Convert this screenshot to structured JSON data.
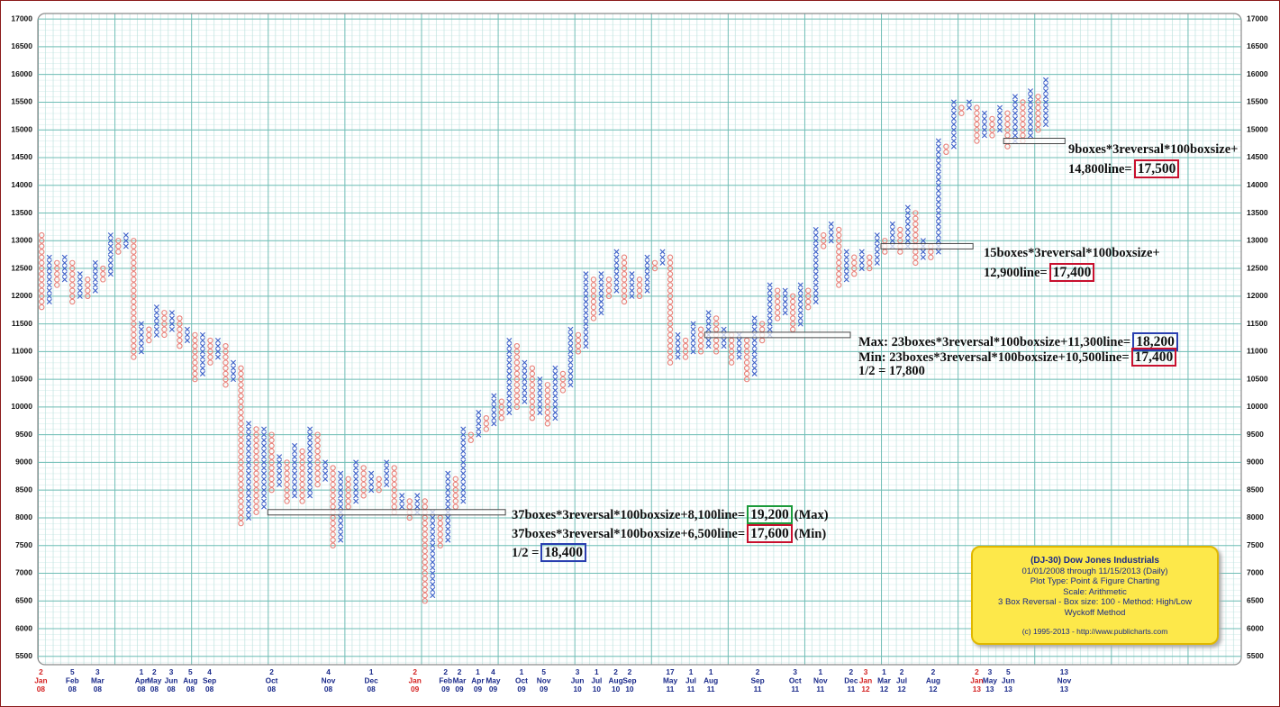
{
  "chart_data": {
    "type": "pointfigure",
    "box_size": 100,
    "xlim": [
      0,
      157
    ],
    "ylim": [
      5350,
      17100
    ],
    "yticks": [
      5500,
      6000,
      6500,
      7000,
      7500,
      8000,
      8500,
      9000,
      9500,
      10000,
      10500,
      11000,
      11500,
      12000,
      12500,
      13000,
      13500,
      14000,
      14500,
      15000,
      15500,
      16000,
      16500,
      17000
    ],
    "colors": {
      "X": "#3b5fc8",
      "O": "#e8827a",
      "grid_minor": "#bfe3df",
      "grid_major": "#6fbdb5",
      "label": "#1a2a8a",
      "label_highlight": "#d42020"
    },
    "turning_points": [
      13100,
      11800,
      12700,
      12200,
      12700,
      11900,
      12400,
      12000,
      12600,
      12300,
      13100,
      12800,
      13100,
      10900,
      11500,
      11200,
      11800,
      11300,
      11700,
      11100,
      11400,
      10500,
      11300,
      10800,
      11200,
      10400,
      10800,
      7900,
      9700,
      8100,
      9600,
      8500,
      9100,
      8300,
      9300,
      8300,
      9600,
      8600,
      9000,
      7500,
      8800,
      8200,
      9000,
      8400,
      8800,
      8500,
      9000,
      8100,
      8400,
      8000,
      8400,
      6500,
      8100,
      7500,
      8800,
      8200,
      9600,
      9400,
      9900,
      9600,
      10200,
      9800,
      11200,
      10000,
      10800,
      9800,
      10500,
      9700,
      10700,
      10300,
      11400,
      11000,
      12400,
      11600,
      12400,
      12000,
      12800,
      11900,
      12400,
      12000,
      12700,
      12500,
      12800,
      10800,
      11300,
      10900,
      11500,
      11000,
      11700,
      11000,
      11400,
      10800,
      11300,
      10500,
      11600,
      11200,
      12200,
      11600,
      12100,
      11400,
      12200,
      11800,
      13200,
      12900,
      13300,
      12200,
      12800,
      12400,
      12800,
      12500,
      13100,
      12800,
      13300,
      12800,
      13600,
      12600,
      13000,
      12700,
      14800,
      14600,
      15500,
      15300,
      15500,
      14800,
      15300,
      14900,
      15400,
      14700,
      15600,
      14800,
      15700,
      15000,
      15900
    ],
    "count_lines": [
      {
        "price": 8100,
        "from": 30,
        "to": 61
      },
      {
        "price": 11300,
        "from": 87,
        "to": 106
      },
      {
        "price": 12900,
        "from": 110,
        "to": 122
      },
      {
        "price": 14800,
        "from": 126,
        "to": 134
      }
    ],
    "x_labels": [
      {
        "col": 0.4,
        "lines": [
          "2",
          "Jan",
          "08"
        ],
        "highlight": true
      },
      {
        "col": 4.5,
        "lines": [
          "5",
          "Feb",
          "08"
        ]
      },
      {
        "col": 7.8,
        "lines": [
          "3",
          "Mar",
          "08"
        ]
      },
      {
        "col": 13.5,
        "lines": [
          "1",
          "Apr",
          "08"
        ]
      },
      {
        "col": 15.2,
        "lines": [
          "2",
          "May",
          "08"
        ]
      },
      {
        "col": 17.4,
        "lines": [
          "3",
          "Jun",
          "08"
        ]
      },
      {
        "col": 19.9,
        "lines": [
          "5",
          "Aug",
          "08"
        ]
      },
      {
        "col": 22.4,
        "lines": [
          "4",
          "Sep",
          "08"
        ]
      },
      {
        "col": 30.5,
        "lines": [
          "2",
          "Oct",
          "08"
        ]
      },
      {
        "col": 37.9,
        "lines": [
          "4",
          "Nov",
          "08"
        ]
      },
      {
        "col": 43.5,
        "lines": [
          "1",
          "Dec",
          "08"
        ]
      },
      {
        "col": 49.2,
        "lines": [
          "2",
          "Jan",
          "09"
        ],
        "highlight": true
      },
      {
        "col": 53.2,
        "lines": [
          "2",
          "Feb",
          "09"
        ]
      },
      {
        "col": 55,
        "lines": [
          "2",
          "Mar",
          "09"
        ]
      },
      {
        "col": 57.4,
        "lines": [
          "1",
          "Apr",
          "09"
        ]
      },
      {
        "col": 59.4,
        "lines": [
          "4",
          "May",
          "09"
        ]
      },
      {
        "col": 63.1,
        "lines": [
          "1",
          "Oct",
          "09"
        ]
      },
      {
        "col": 66,
        "lines": [
          "5",
          "Nov",
          "09"
        ]
      },
      {
        "col": 70.4,
        "lines": [
          "3",
          "Jun",
          "10"
        ]
      },
      {
        "col": 72.9,
        "lines": [
          "1",
          "Jul",
          "10"
        ]
      },
      {
        "col": 75.4,
        "lines": [
          "2",
          "Aug",
          "10"
        ]
      },
      {
        "col": 77.2,
        "lines": [
          "2",
          "Sep",
          "10"
        ]
      },
      {
        "col": 82.5,
        "lines": [
          "17",
          "May",
          "11"
        ]
      },
      {
        "col": 85.2,
        "lines": [
          "1",
          "Jul",
          "11"
        ]
      },
      {
        "col": 87.8,
        "lines": [
          "1",
          "Aug",
          "11"
        ]
      },
      {
        "col": 93.9,
        "lines": [
          "2",
          "Sep",
          "11"
        ]
      },
      {
        "col": 98.8,
        "lines": [
          "3",
          "Oct",
          "11"
        ]
      },
      {
        "col": 102.1,
        "lines": [
          "1",
          "Nov",
          "11"
        ]
      },
      {
        "col": 106.1,
        "lines": [
          "2",
          "Dec",
          "11"
        ]
      },
      {
        "col": 108,
        "lines": [
          "3",
          "Jan",
          "12"
        ],
        "highlight": true
      },
      {
        "col": 110.4,
        "lines": [
          "1",
          "Mar",
          "12"
        ]
      },
      {
        "col": 112.7,
        "lines": [
          "2",
          "Jul",
          "12"
        ]
      },
      {
        "col": 116.8,
        "lines": [
          "2",
          "Aug",
          "12"
        ]
      },
      {
        "col": 122.5,
        "lines": [
          "2",
          "Jan",
          "13"
        ],
        "highlight": true
      },
      {
        "col": 124.2,
        "lines": [
          "3",
          "May",
          "13"
        ]
      },
      {
        "col": 126.6,
        "lines": [
          "5",
          "Jun",
          "13"
        ]
      },
      {
        "col": 133.9,
        "lines": [
          "13",
          "Nov",
          "13"
        ]
      }
    ]
  },
  "annotations": [
    {
      "lines": [
        {
          "text": "9boxes*3reversal*100boxsize+"
        },
        {
          "text": "14,800line=",
          "result": "17,500",
          "result_color": "#c8102e"
        }
      ]
    },
    {
      "lines": [
        {
          "text": "15boxes*3reversal*100boxsize+"
        },
        {
          "text": "12,900line=",
          "result": "17,400",
          "result_color": "#c8102e"
        }
      ]
    },
    {
      "lines": [
        {
          "text": "Max: 23boxes*3reversal*100boxsize+11,300line=",
          "result": "18,200",
          "result_color": "#2a3fb0"
        },
        {
          "text": "Min: 23boxes*3reversal*100boxsize+10,500line=",
          "result": "17,400",
          "result_color": "#c8102e"
        },
        {
          "text": "1/2 = 17,800"
        }
      ]
    },
    {
      "lines": [
        {
          "text": "37boxes*3reversal*100boxsize+8,100line=",
          "result": "19,200",
          "result_color": "#1a9a3a",
          "suffix": "(Max)"
        },
        {
          "text": "37boxes*3reversal*100boxsize+6,500line=",
          "result": "17,600",
          "result_color": "#c8102e",
          "suffix": "(Min)"
        },
        {
          "text": "1/2 =",
          "result": "18,400",
          "result_color": "#2a3fb0"
        }
      ]
    }
  ],
  "legend_box": {
    "title": "(DJ-30) Dow Jones Industrials",
    "lines": [
      "01/01/2008 through 11/15/2013 (Daily)",
      "Plot Type: Point & Figure Charting",
      "Scale: Arithmetic",
      "3 Box Reversal - Box size: 100 - Method: High/Low",
      "Wyckoff Method"
    ],
    "copyright": "(c) 1995-2013 - http://www.publicharts.com"
  }
}
